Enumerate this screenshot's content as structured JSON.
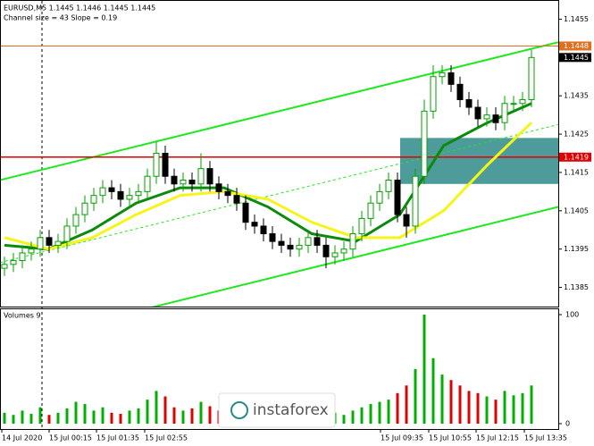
{
  "chart_data": {
    "type": "candlestick",
    "header": "EURUSD,M5  1.1445 1.1446 1.1445 1.1445",
    "indicator_text": "Channel size = 43 Slope = 0.19",
    "volume_title": "Volumes 9",
    "watermark": "instaforex",
    "x_labels": [
      "14 Jul 2020",
      "15 Jul 00:15",
      "15 Jul 01:35",
      "15 Jul 02:55",
      "15 Jul 09:35",
      "15 Jul 10:55",
      "15 Jul 12:15",
      "15 Jul 13:35"
    ],
    "open": [
      1.139,
      1.1391,
      1.1392,
      1.1394,
      1.1395,
      1.1398,
      1.1396,
      1.1397,
      1.1401,
      1.1404,
      1.1407,
      1.1409,
      1.1411,
      1.141,
      1.1408,
      1.1409,
      1.141,
      1.1414,
      1.142,
      1.1414,
      1.1412,
      1.1413,
      1.1412,
      1.1416,
      1.1412,
      1.141,
      1.1409,
      1.1407,
      1.1402,
      1.1401,
      1.1399,
      1.1397,
      1.1396,
      1.1395,
      1.1396,
      1.1398,
      1.1396,
      1.1393,
      1.1394,
      1.1395,
      1.1399,
      1.1403,
      1.1407,
      1.141,
      1.1413,
      1.1404,
      1.1401,
      1.1414,
      1.1431,
      1.144,
      1.1441,
      1.1438,
      1.1434,
      1.1432,
      1.1429,
      1.143,
      1.1428,
      1.1433,
      1.1433,
      1.1434
    ],
    "high": [
      1.1393,
      1.1394,
      1.1396,
      1.1397,
      1.14,
      1.14,
      1.1399,
      1.1403,
      1.1406,
      1.1409,
      1.1411,
      1.1413,
      1.1413,
      1.1412,
      1.1411,
      1.1412,
      1.1416,
      1.1423,
      1.1422,
      1.1416,
      1.1415,
      1.1415,
      1.142,
      1.1418,
      1.1414,
      1.1412,
      1.1411,
      1.1409,
      1.1404,
      1.1403,
      1.1401,
      1.1399,
      1.1398,
      1.1398,
      1.14,
      1.14,
      1.1398,
      1.1396,
      1.1397,
      1.1401,
      1.1405,
      1.1409,
      1.1412,
      1.1415,
      1.1415,
      1.1406,
      1.1416,
      1.1434,
      1.1443,
      1.1443,
      1.1443,
      1.144,
      1.1436,
      1.1434,
      1.1432,
      1.1432,
      1.1435,
      1.1435,
      1.1436,
      1.1447
    ],
    "low": [
      1.1388,
      1.1389,
      1.139,
      1.1392,
      1.1393,
      1.1394,
      1.1394,
      1.1395,
      1.1399,
      1.1402,
      1.1405,
      1.1407,
      1.1408,
      1.1406,
      1.1406,
      1.1407,
      1.1408,
      1.1412,
      1.1412,
      1.141,
      1.141,
      1.141,
      1.141,
      1.141,
      1.1408,
      1.1407,
      1.1405,
      1.14,
      1.1399,
      1.1397,
      1.1395,
      1.1394,
      1.1393,
      1.1393,
      1.1394,
      1.1394,
      1.139,
      1.1391,
      1.1392,
      1.1393,
      1.1397,
      1.1401,
      1.1405,
      1.1408,
      1.1402,
      1.1398,
      1.1399,
      1.1412,
      1.1429,
      1.1438,
      1.1436,
      1.1432,
      1.143,
      1.1427,
      1.1427,
      1.1426,
      1.1426,
      1.1431,
      1.1431,
      1.1432
    ],
    "close": [
      1.1391,
      1.1392,
      1.1394,
      1.1395,
      1.1398,
      1.1396,
      1.1397,
      1.1401,
      1.1404,
      1.1407,
      1.1409,
      1.1411,
      1.141,
      1.1408,
      1.1409,
      1.141,
      1.1414,
      1.142,
      1.1414,
      1.1412,
      1.1413,
      1.1412,
      1.1416,
      1.1412,
      1.141,
      1.1409,
      1.1407,
      1.1402,
      1.1401,
      1.1399,
      1.1397,
      1.1396,
      1.1395,
      1.1396,
      1.1398,
      1.1396,
      1.1393,
      1.1394,
      1.1395,
      1.1399,
      1.1403,
      1.1407,
      1.141,
      1.1413,
      1.1404,
      1.1401,
      1.1414,
      1.1431,
      1.144,
      1.1441,
      1.1438,
      1.1434,
      1.1432,
      1.1429,
      1.143,
      1.1428,
      1.1433,
      1.1433,
      1.1434,
      1.1445
    ],
    "up_color": "#00a000",
    "down_color": "#000000",
    "volume": [
      10,
      8,
      12,
      9,
      15,
      8,
      10,
      14,
      20,
      18,
      12,
      15,
      10,
      9,
      12,
      14,
      22,
      30,
      25,
      15,
      12,
      14,
      20,
      16,
      12,
      10,
      14,
      18,
      12,
      10,
      9,
      11,
      8,
      10,
      12,
      9,
      14,
      10,
      8,
      12,
      15,
      18,
      20,
      22,
      28,
      35,
      50,
      100,
      60,
      45,
      40,
      35,
      30,
      28,
      25,
      22,
      30,
      26,
      28,
      35
    ],
    "volume_up_color": "#00b000",
    "volume_down_color": "#e00000",
    "moving_averages": [
      {
        "color": "#0b8a0b",
        "values": [
          1.1396,
          1.1395,
          1.14,
          1.1407,
          1.1411,
          1.1411,
          1.1406,
          1.1399,
          1.1397,
          1.1404,
          1.1422,
          1.1428,
          1.1433
        ]
      },
      {
        "color": "#f5f51a",
        "values": [
          1.1398,
          1.1395,
          1.1398,
          1.1404,
          1.1409,
          1.141,
          1.1408,
          1.1402,
          1.1398,
          1.1398,
          1.1405,
          1.1417,
          1.1428
        ]
      }
    ],
    "channel": {
      "color": "#1ee81e",
      "upper": [
        1.1413,
        1.1449
      ],
      "middle": [
        1.13915,
        1.14275
      ],
      "lower": [
        1.137,
        1.1406
      ]
    },
    "resistance": {
      "value": 1.1448,
      "color": "#e07020"
    },
    "support": {
      "value": 1.1419,
      "color": "#e00000"
    },
    "zone": {
      "high": 1.1424,
      "low": 1.1412,
      "color": "#2f8a8a"
    },
    "last_price": 1.1445,
    "ylim": [
      1.138,
      1.146
    ],
    "yticks": [
      1.1455,
      1.1435,
      1.1425,
      1.1415,
      1.1405,
      1.1395,
      1.1385
    ],
    "volume_ylim": [
      0,
      100
    ],
    "volume_yticks": [
      0,
      100
    ]
  }
}
